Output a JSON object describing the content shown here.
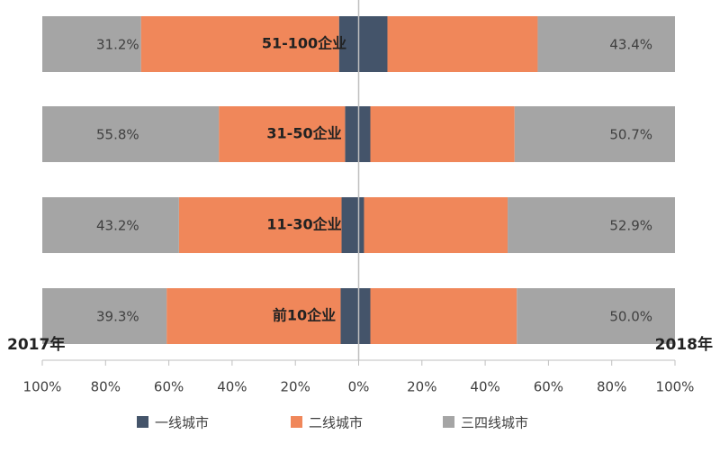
{
  "chart_data": {
    "type": "butterfly-bar",
    "categories": [
      "51-100企业",
      "31-50企业",
      "11-30企业",
      "前10企业"
    ],
    "years": [
      "2017年",
      "2018年"
    ],
    "series": [
      {
        "name": "一线城市",
        "color": "#44546a",
        "values": [
          [
            6.2,
            4.3,
            5.4,
            5.7
          ],
          [
            9.1,
            3.7,
            1.7,
            3.7
          ]
        ]
      },
      {
        "name": "二线城市",
        "color": "#f0875a",
        "values": [
          [
            62.6,
            39.9,
            51.4,
            55.0
          ],
          [
            47.5,
            45.6,
            45.4,
            46.3
          ]
        ]
      },
      {
        "name": "三四线城市",
        "color": "#a5a5a5",
        "values": [
          [
            31.2,
            55.8,
            43.2,
            39.3
          ],
          [
            43.4,
            50.7,
            52.9,
            50.0
          ]
        ],
        "value_labels": [
          [
            "31.2%",
            "55.8%",
            "43.2%",
            "39.3%"
          ],
          [
            "43.4%",
            "50.7%",
            "52.9%",
            "50.0%"
          ]
        ]
      }
    ],
    "xlim": [
      -100,
      100
    ],
    "xticks": [
      {
        "value": -100,
        "label": "100%"
      },
      {
        "value": -80,
        "label": "80%"
      },
      {
        "value": -60,
        "label": "60%"
      },
      {
        "value": -40,
        "label": "40%"
      },
      {
        "value": -20,
        "label": "20%"
      },
      {
        "value": 0,
        "label": "0%"
      },
      {
        "value": 20,
        "label": "20%"
      },
      {
        "value": 40,
        "label": "40%"
      },
      {
        "value": 60,
        "label": "60%"
      },
      {
        "value": 80,
        "label": "80%"
      },
      {
        "value": 100,
        "label": "100%"
      }
    ]
  }
}
